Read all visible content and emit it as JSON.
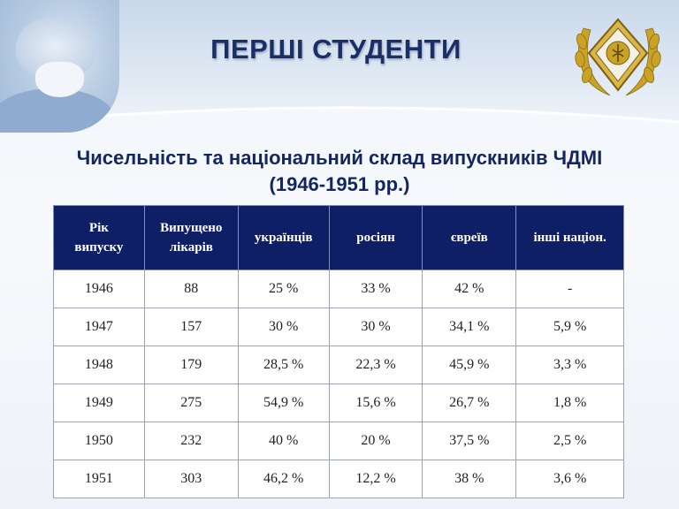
{
  "title": "ПЕРШІ СТУДЕНТИ",
  "subtitle_line1": "Чисельність та національний склад випускників ЧДМІ",
  "subtitle_line2": "(1946-1951 рр.)",
  "table": {
    "headers": [
      [
        "Рік",
        "випуску"
      ],
      [
        "Випущено",
        "лікарів"
      ],
      [
        "українців"
      ],
      [
        "росіян"
      ],
      [
        "євреїв"
      ],
      [
        "інші націон."
      ]
    ],
    "rows": [
      [
        "1946",
        "88",
        "25 %",
        "33 %",
        "42 %",
        "-"
      ],
      [
        "1947",
        "157",
        "30 %",
        "30 %",
        "34,1 %",
        "5,9 %"
      ],
      [
        "1948",
        "179",
        "28,5 %",
        "22,3 %",
        "45,9 %",
        "3,3 %"
      ],
      [
        "1949",
        "275",
        "54,9 %",
        "15,6 %",
        "26,7 %",
        "1,8 %"
      ],
      [
        "1950",
        "232",
        "40 %",
        "20 %",
        "37,5 %",
        "2,5 %"
      ],
      [
        "1951",
        "303",
        "46,2 %",
        "12,2 %",
        "38 %",
        "3,6 %"
      ]
    ]
  },
  "colors": {
    "header_bg": "#0e1f66",
    "title": "#1b2f66",
    "emblem_gold": "#c9a227"
  },
  "icons": [
    "surgeon-photo",
    "university-emblem"
  ]
}
